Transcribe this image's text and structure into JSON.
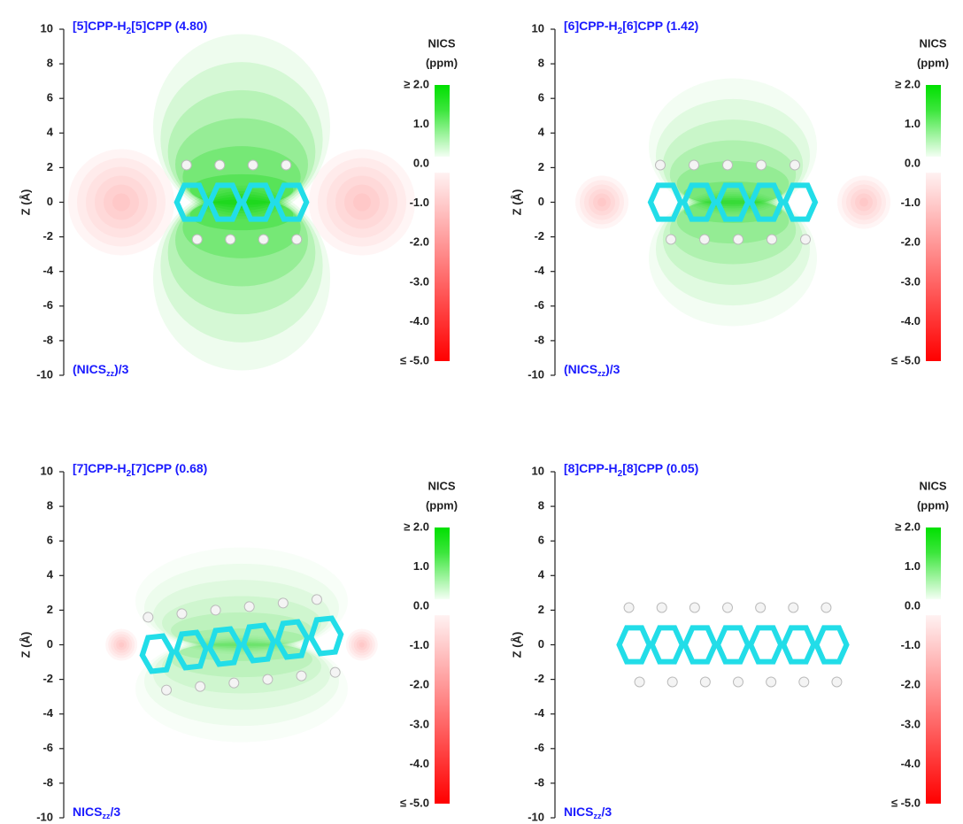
{
  "panels": [
    {
      "title": [
        "[5]CPP-H",
        "2",
        "[5]CPP (4.80)"
      ],
      "note": [
        "(NICS",
        "zz",
        ")/3"
      ]
    },
    {
      "title": [
        "[6]CPP-H",
        "2",
        "[6]CPP (1.42)"
      ],
      "note": [
        "(NICS",
        "zz",
        ")/3"
      ]
    },
    {
      "title": [
        "[7]CPP-H",
        "2",
        "[7]CPP (0.68)"
      ],
      "note": [
        "NICS",
        "zz",
        "/3"
      ]
    },
    {
      "title": [
        "[8]CPP-H",
        "2",
        "[8]CPP (0.05)"
      ],
      "note": [
        "NICS",
        "zz",
        "/3"
      ]
    }
  ],
  "y_axis": {
    "label": "Z (Å)",
    "lim": [
      -10,
      10
    ],
    "ticks": [
      10,
      8,
      6,
      4,
      2,
      0,
      -2,
      -4,
      -6,
      -8,
      -10
    ]
  },
  "colorbar": {
    "title": [
      "NICS",
      "(ppm)"
    ],
    "lim": [
      -5,
      2
    ],
    "ticks": [
      {
        "value": 2,
        "label": "≥ 2.0"
      },
      {
        "value": 1,
        "label": "1.0"
      },
      {
        "value": 0,
        "label": "0.0"
      },
      {
        "value": -1,
        "label": "-1.0"
      },
      {
        "value": -2,
        "label": "-2.0"
      },
      {
        "value": -3,
        "label": "-3.0"
      },
      {
        "value": -4,
        "label": "-4.0"
      },
      {
        "value": -5,
        "label": "≤ -5.0"
      }
    ]
  }
}
